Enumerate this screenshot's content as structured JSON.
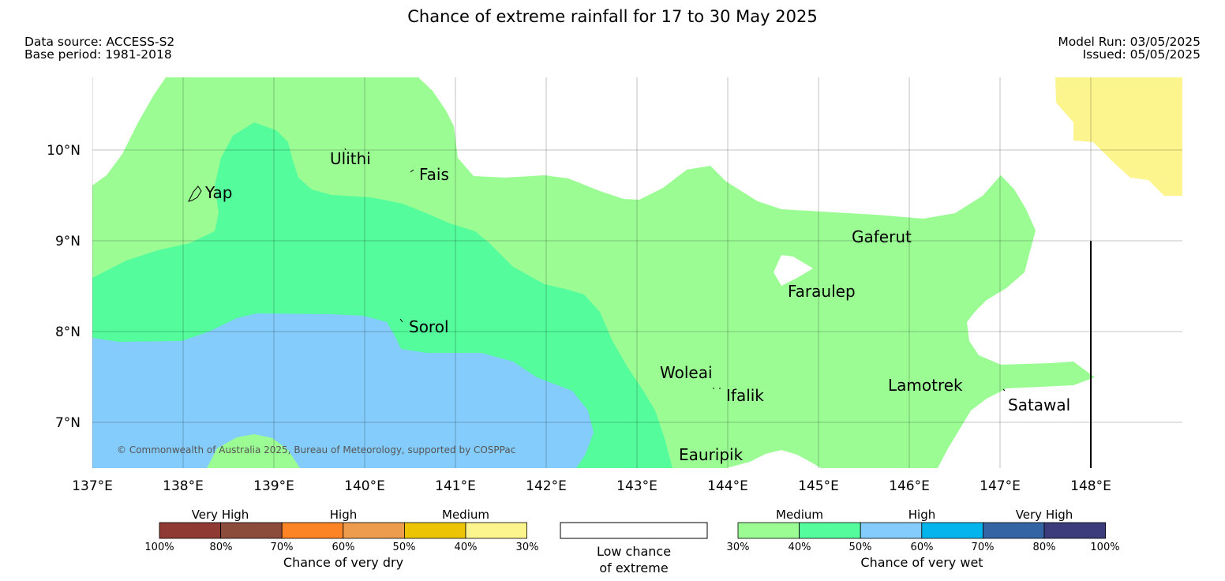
{
  "title": "Chance of extreme rainfall for 17 to 30 May 2025",
  "data_source": "Data source: ACCESS-S2",
  "base_period": "Base period: 1981-2018",
  "model_run": "Model Run: 03/05/2025",
  "issued": "Issued: 05/05/2025",
  "copyright": "© Commonwealth of Australia 2025, Bureau of Meteorology, supported by COSPPac",
  "map": {
    "lon_labels": [
      "137°E",
      "138°E",
      "139°E",
      "140°E",
      "141°E",
      "142°E",
      "143°E",
      "144°E",
      "145°E",
      "146°E",
      "147°E",
      "148°E"
    ],
    "lat_labels": [
      "10°N",
      "9°N",
      "8°N",
      "7°N"
    ],
    "places": {
      "yap": "Yap",
      "ulithi": "Ulithi",
      "fais": "Fais",
      "sorol": "Sorol",
      "gaferut": "Gaferut",
      "faraulep": "Faraulep",
      "woleai": "Woleai",
      "ifalik": "Ifalik",
      "lamotrek": "Lamotrek",
      "satawal": "Satawal",
      "eauripik": "Eauripik"
    },
    "colors": {
      "wet_medium_low": "#9cfc94",
      "wet_medium_high": "#54fc9c",
      "wet_high": "#84ccfc",
      "dry_low": "#fcf48c"
    }
  },
  "legend": {
    "dry": {
      "headers": [
        "Very High",
        "High",
        "Medium"
      ],
      "ticks": [
        "100%",
        "80%",
        "70%",
        "60%",
        "50%",
        "40%",
        "30%"
      ],
      "colors": [
        "#8f3a32",
        "#8c4c3c",
        "#fc8424",
        "#ec9c4c",
        "#ecc404",
        "#fcf48c"
      ],
      "caption": "Chance of very dry"
    },
    "low": {
      "line1": "Low chance",
      "line2": "of extreme",
      "color": "#ffffff"
    },
    "wet": {
      "headers": [
        "Medium",
        "High",
        "Very High"
      ],
      "ticks": [
        "30%",
        "40%",
        "50%",
        "60%",
        "70%",
        "80%",
        "100%"
      ],
      "colors": [
        "#9cfc94",
        "#54fc9c",
        "#84ccfc",
        "#04b4ec",
        "#3464a4",
        "#3c3c7c"
      ],
      "caption": "Chance of very wet"
    }
  }
}
